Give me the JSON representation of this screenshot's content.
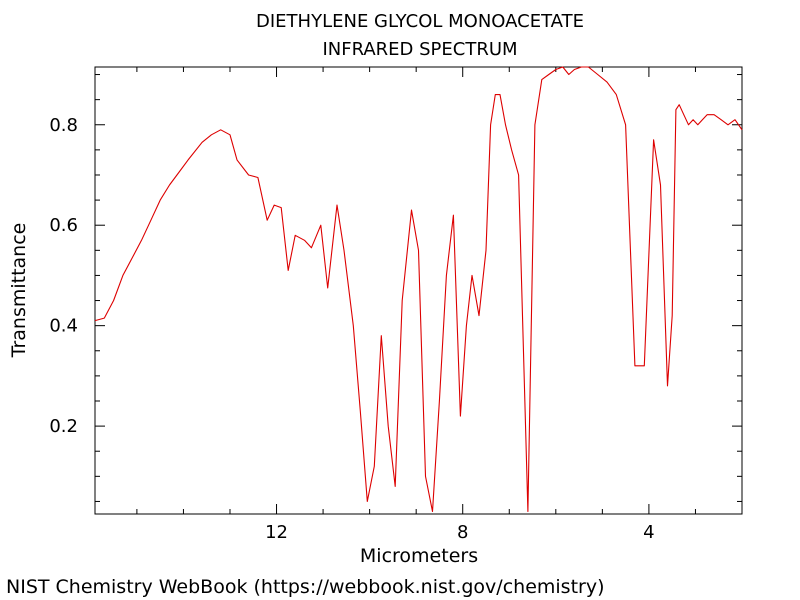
{
  "chart_data": {
    "type": "line",
    "title": "DIETHYLENE GLYCOL MONOACETATE",
    "subtitle": "INFRARED SPECTRUM",
    "xlabel": "Micrometers",
    "ylabel": "Transmittance",
    "xlim": [
      15.9,
      2.0
    ],
    "ylim": [
      0.025,
      0.915
    ],
    "x_ticks": [
      12,
      8,
      4
    ],
    "y_ticks": [
      0.2,
      0.4,
      0.6,
      0.8
    ],
    "grid": false,
    "line_color": "#dd0000",
    "series": [
      {
        "x": [
          15.9,
          15.7,
          15.5,
          15.3,
          15.1,
          14.9,
          14.7,
          14.5,
          14.3,
          14.1,
          13.9,
          13.6,
          13.4,
          13.2,
          13.0,
          12.85,
          12.6,
          12.4,
          12.2,
          12.05,
          11.9,
          11.75,
          11.6,
          11.4,
          11.25,
          11.05,
          10.9,
          10.7,
          10.55,
          10.35,
          10.2,
          10.05,
          9.9,
          9.75,
          9.6,
          9.45,
          9.3,
          9.1,
          8.95,
          8.8,
          8.65,
          8.5,
          8.35,
          8.2,
          8.05,
          7.92,
          7.8,
          7.65,
          7.5,
          7.4,
          7.3,
          7.2,
          7.08,
          6.95,
          6.8,
          6.6,
          6.45,
          6.3,
          6.15,
          6.0,
          5.85,
          5.72,
          5.6,
          5.45,
          5.3,
          5.1,
          4.9,
          4.7,
          4.5,
          4.3,
          4.1,
          3.9,
          3.75,
          3.6,
          3.5,
          3.42,
          3.35,
          3.25,
          3.15,
          3.05,
          2.95,
          2.85,
          2.75,
          2.6,
          2.45,
          2.3,
          2.15,
          2.0
        ],
        "y": [
          0.41,
          0.415,
          0.45,
          0.5,
          0.535,
          0.57,
          0.61,
          0.65,
          0.68,
          0.705,
          0.73,
          0.765,
          0.78,
          0.79,
          0.78,
          0.73,
          0.7,
          0.695,
          0.61,
          0.64,
          0.635,
          0.51,
          0.58,
          0.57,
          0.555,
          0.6,
          0.475,
          0.64,
          0.55,
          0.4,
          0.23,
          0.05,
          0.12,
          0.38,
          0.2,
          0.08,
          0.45,
          0.63,
          0.55,
          0.1,
          0.03,
          0.25,
          0.5,
          0.62,
          0.22,
          0.4,
          0.5,
          0.42,
          0.55,
          0.8,
          0.86,
          0.86,
          0.8,
          0.75,
          0.7,
          0.03,
          0.8,
          0.89,
          0.9,
          0.91,
          0.92,
          0.9,
          0.91,
          0.915,
          0.92,
          0.9,
          0.885,
          0.86,
          0.8,
          0.32,
          0.32,
          0.77,
          0.68,
          0.28,
          0.42,
          0.83,
          0.84,
          0.82,
          0.8,
          0.81,
          0.8,
          0.81,
          0.82,
          0.82,
          0.81,
          0.8,
          0.81,
          0.79
        ]
      }
    ]
  },
  "credit": "NIST Chemistry WebBook (https://webbook.nist.gov/chemistry)"
}
